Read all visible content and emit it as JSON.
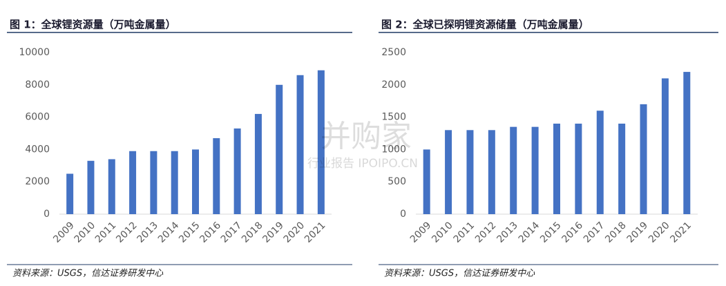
{
  "chart_data": [
    {
      "type": "bar",
      "title": "图 1：全球锂资源量（万吨金属量）",
      "source": "资料来源：USGS，信达证券研发中心",
      "categories": [
        "2009",
        "2010",
        "2011",
        "2012",
        "2013",
        "2014",
        "2015",
        "2016",
        "2017",
        "2018",
        "2019",
        "2020",
        "2021"
      ],
      "values": [
        2500,
        3300,
        3400,
        3900,
        3900,
        3900,
        4000,
        4700,
        5300,
        6200,
        8000,
        8600,
        8900
      ],
      "color": "#4472c4",
      "ylim": [
        0,
        10000
      ],
      "yticks": [
        0,
        2000,
        4000,
        6000,
        8000,
        10000
      ],
      "grid": false
    },
    {
      "type": "bar",
      "title": "图 2：全球已探明锂资源储量（万吨金属量）",
      "source": "资料来源：USGS，信达证券研发中心",
      "categories": [
        "2009",
        "2010",
        "2011",
        "2012",
        "2013",
        "2014",
        "2015",
        "2016",
        "2017",
        "2018",
        "2019",
        "2020",
        "2021"
      ],
      "values": [
        1000,
        1300,
        1300,
        1300,
        1350,
        1350,
        1400,
        1400,
        1600,
        1400,
        1700,
        2100,
        2200
      ],
      "color": "#4472c4",
      "ylim": [
        0,
        2500
      ],
      "yticks": [
        0,
        500,
        1000,
        1500,
        2000,
        2500
      ],
      "grid": false
    }
  ],
  "watermark": {
    "title": "并购家",
    "subtitle": "行业报告 IPOIPO.CN"
  }
}
